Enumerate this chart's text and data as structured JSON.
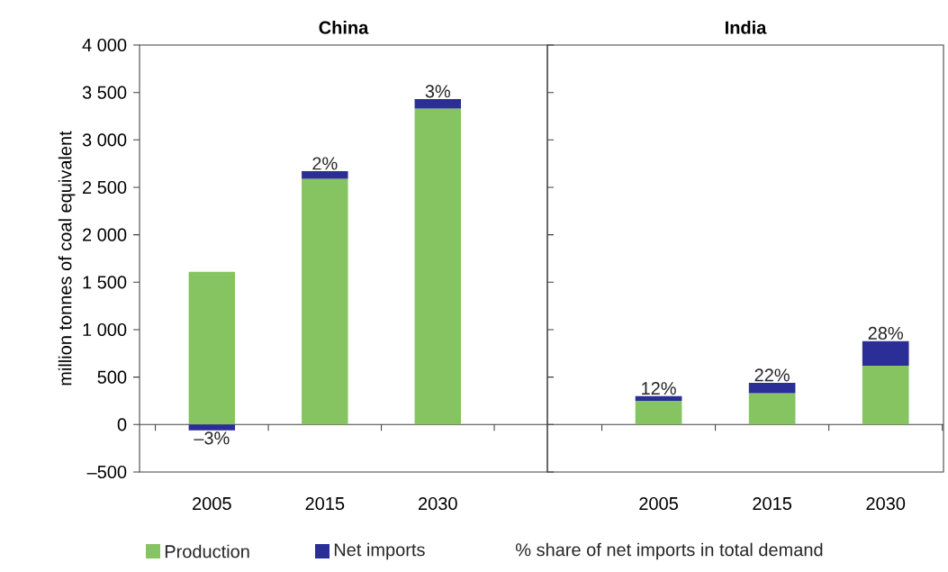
{
  "chart_data": [
    {
      "type": "bar",
      "title": "China",
      "ylabel": "million tonnes of coal equivalent",
      "categories": [
        "2005",
        "2015",
        "2030"
      ],
      "stacked": true,
      "legend": "bottom",
      "series": [
        {
          "name": "Production",
          "color": "#86c462",
          "values": [
            1610,
            2590,
            3330
          ]
        },
        {
          "name": "Net imports",
          "color": "#2b2e96",
          "values": [
            -60,
            80,
            100
          ]
        }
      ],
      "ylim": [
        -500,
        4000
      ],
      "yticks": [
        {
          "value": -500,
          "label": "–500"
        },
        0,
        500,
        {
          "value": 1000,
          "label": "1 000"
        },
        {
          "value": 1500,
          "label": "1 500"
        },
        {
          "value": 2000,
          "label": "2 000"
        },
        {
          "value": 2500,
          "label": "2 500"
        },
        {
          "value": 3000,
          "label": "3 000"
        },
        {
          "value": 3500,
          "label": "3 500"
        },
        {
          "value": 4000,
          "label": "4 000"
        }
      ],
      "annotations": [
        {
          "text": "–3%",
          "x": "2005",
          "y": -60
        },
        {
          "text": "2%",
          "x": "2015",
          "y": 2670
        },
        {
          "text": "3%",
          "x": "2030",
          "y": 3430
        },
        "% share of net imports in total demand"
      ]
    },
    {
      "type": "bar",
      "title": "India",
      "categories": [
        "2005",
        "2015",
        "2030"
      ],
      "stacked": true,
      "series": [
        {
          "color": "#86c462",
          "values": [
            250,
            330,
            620
          ]
        },
        {
          "color": "#2b2e96",
          "values": [
            50,
            110,
            260
          ]
        }
      ],
      "ylim": [
        -500,
        4000
      ],
      "yticks": [
        -500,
        0,
        500,
        1000,
        1500,
        2000,
        2500,
        3000,
        3500,
        4000
      ],
      "annotations": [
        {
          "text": "12%",
          "x": "2005",
          "y": 300
        },
        {
          "text": "22%",
          "x": "2015",
          "y": 440
        },
        {
          "text": "28%",
          "x": "2030",
          "y": 880
        }
      ],
      "tick_labels": "x"
    }
  ]
}
